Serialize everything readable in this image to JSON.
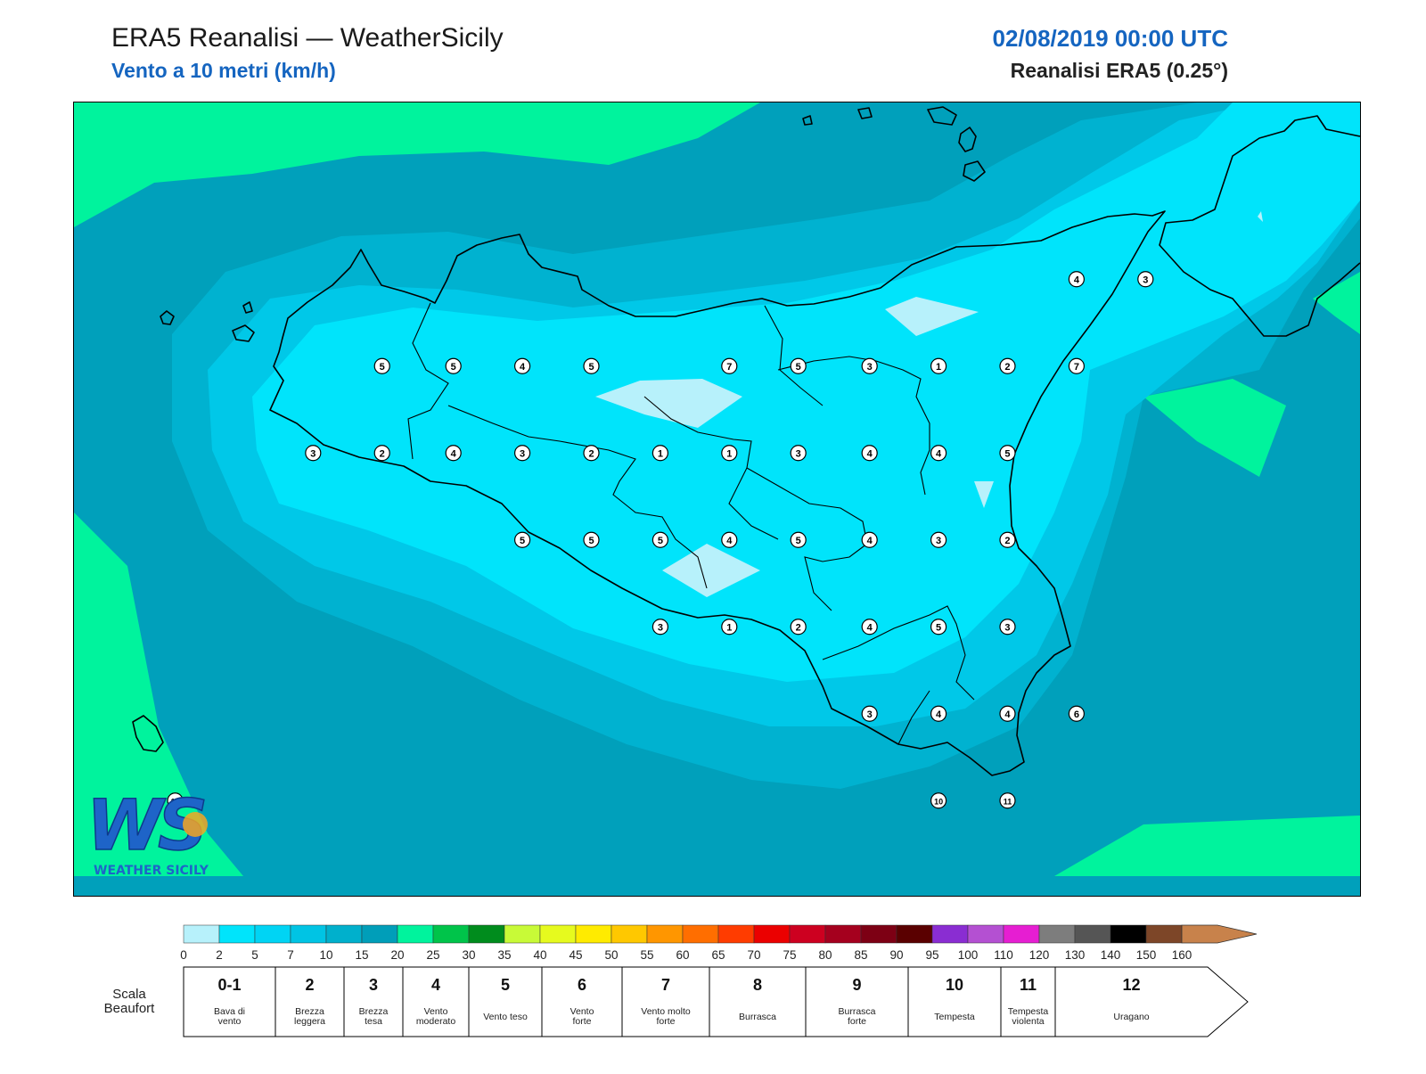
{
  "header": {
    "title": "ERA5 Reanalisi — WeatherSicily",
    "subtitle": "Vento a 10 metri (km/h)",
    "datetime": "02/08/2019 00:00 UTC",
    "source": "Reanalisi ERA5 (0.25°)"
  },
  "logo": {
    "letters": "WS",
    "caption": "WEATHER SICILY"
  },
  "colors": {
    "band_0_2": "#b7f1fb",
    "band_2_5": "#00e4fb",
    "band_5_7": "#00c8e8",
    "band_7_10": "#00b2d0",
    "band_10_15": "#00a0bb",
    "band_15_20": "#00f39d",
    "coastline": "#000000"
  },
  "wind_labels": [
    {
      "v": "5",
      "lon": 12.54,
      "lat": 38.07
    },
    {
      "v": "5",
      "lon": 12.85,
      "lat": 38.07
    },
    {
      "v": "4",
      "lon": 13.15,
      "lat": 38.07
    },
    {
      "v": "5",
      "lon": 13.45,
      "lat": 38.07
    },
    {
      "v": "7",
      "lon": 14.05,
      "lat": 38.07
    },
    {
      "v": "5",
      "lon": 14.35,
      "lat": 38.07
    },
    {
      "v": "3",
      "lon": 14.66,
      "lat": 38.07
    },
    {
      "v": "1",
      "lon": 14.96,
      "lat": 38.07
    },
    {
      "v": "2",
      "lon": 15.26,
      "lat": 38.07
    },
    {
      "v": "7",
      "lon": 15.56,
      "lat": 38.07
    },
    {
      "v": "3",
      "lon": 12.24,
      "lat": 37.77
    },
    {
      "v": "2",
      "lon": 12.54,
      "lat": 37.77
    },
    {
      "v": "4",
      "lon": 12.85,
      "lat": 37.77
    },
    {
      "v": "3",
      "lon": 13.15,
      "lat": 37.77
    },
    {
      "v": "2",
      "lon": 13.45,
      "lat": 37.77
    },
    {
      "v": "1",
      "lon": 13.75,
      "lat": 37.77
    },
    {
      "v": "1",
      "lon": 14.05,
      "lat": 37.77
    },
    {
      "v": "3",
      "lon": 14.35,
      "lat": 37.77
    },
    {
      "v": "4",
      "lon": 14.66,
      "lat": 37.77
    },
    {
      "v": "4",
      "lon": 14.96,
      "lat": 37.77
    },
    {
      "v": "5",
      "lon": 15.26,
      "lat": 37.77
    },
    {
      "v": "5",
      "lon": 13.15,
      "lat": 37.47
    },
    {
      "v": "5",
      "lon": 13.45,
      "lat": 37.47
    },
    {
      "v": "5",
      "lon": 13.75,
      "lat": 37.47
    },
    {
      "v": "4",
      "lon": 14.05,
      "lat": 37.47
    },
    {
      "v": "5",
      "lon": 14.35,
      "lat": 37.47
    },
    {
      "v": "4",
      "lon": 14.66,
      "lat": 37.47
    },
    {
      "v": "3",
      "lon": 14.96,
      "lat": 37.47
    },
    {
      "v": "2",
      "lon": 15.26,
      "lat": 37.47
    },
    {
      "v": "3",
      "lon": 13.75,
      "lat": 37.17
    },
    {
      "v": "1",
      "lon": 14.05,
      "lat": 37.17
    },
    {
      "v": "2",
      "lon": 14.35,
      "lat": 37.17
    },
    {
      "v": "4",
      "lon": 14.66,
      "lat": 37.17
    },
    {
      "v": "5",
      "lon": 14.96,
      "lat": 37.17
    },
    {
      "v": "3",
      "lon": 15.26,
      "lat": 37.17
    },
    {
      "v": "3",
      "lon": 14.66,
      "lat": 36.87
    },
    {
      "v": "4",
      "lon": 14.96,
      "lat": 36.87
    },
    {
      "v": "4",
      "lon": 15.26,
      "lat": 36.87
    },
    {
      "v": "6",
      "lon": 15.56,
      "lat": 36.87
    },
    {
      "v": "10",
      "lon": 14.96,
      "lat": 36.57
    },
    {
      "v": "11",
      "lon": 15.26,
      "lat": 36.57
    },
    {
      "v": "15",
      "lon": 11.64,
      "lat": 36.57
    },
    {
      "v": "4",
      "lon": 15.56,
      "lat": 38.37
    },
    {
      "v": "3",
      "lon": 15.86,
      "lat": 38.37
    }
  ],
  "colorbar": {
    "ticks": [
      "0",
      "2",
      "5",
      "7",
      "10",
      "15",
      "20",
      "25",
      "30",
      "35",
      "40",
      "45",
      "50",
      "55",
      "60",
      "65",
      "70",
      "75",
      "80",
      "85",
      "90",
      "95",
      "100",
      "110",
      "120",
      "130",
      "140",
      "150",
      "160"
    ],
    "colors": [
      "#b7f1fb",
      "#00e4fb",
      "#00d4f4",
      "#00c4e4",
      "#00b0cc",
      "#009eb9",
      "#00f39d",
      "#00c44a",
      "#008c1d",
      "#c8fa37",
      "#e6fa1e",
      "#ffeb00",
      "#ffc800",
      "#ff9600",
      "#ff6e00",
      "#ff3c00",
      "#eb0000",
      "#cd0020",
      "#a5001e",
      "#7d0014",
      "#5a0000",
      "#8a2dd2",
      "#b450d2",
      "#e61ed2",
      "#7d7d7d",
      "#555555",
      "#000000",
      "#7d4628",
      "#c8824b"
    ]
  },
  "beaufort": {
    "title": "Scala Beaufort",
    "classes": [
      {
        "num": "0-1",
        "desc": "Bava di vento"
      },
      {
        "num": "2",
        "desc": "Brezza leggera"
      },
      {
        "num": "3",
        "desc": "Brezza tesa"
      },
      {
        "num": "4",
        "desc": "Vento moderato"
      },
      {
        "num": "5",
        "desc": "Vento teso"
      },
      {
        "num": "6",
        "desc": "Vento forte"
      },
      {
        "num": "7",
        "desc": "Vento molto forte"
      },
      {
        "num": "8",
        "desc": "Burrasca"
      },
      {
        "num": "9",
        "desc": "Burrasca forte"
      },
      {
        "num": "10",
        "desc": "Tempesta"
      },
      {
        "num": "11",
        "desc": "Tempesta violenta"
      },
      {
        "num": "12",
        "desc": "Uragano"
      }
    ]
  }
}
